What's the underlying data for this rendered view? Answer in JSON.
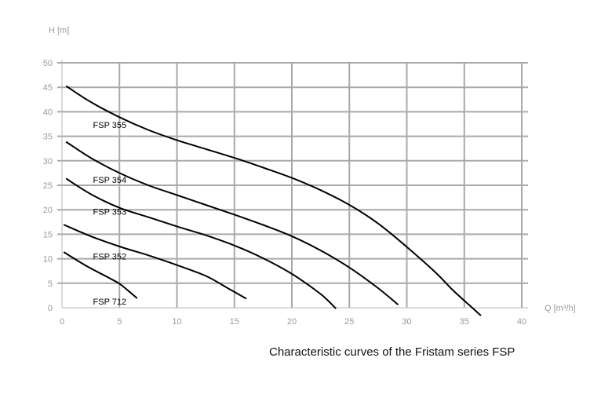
{
  "caption": "Characteristic curves of the Fristam series FSP",
  "chart_data": {
    "type": "line",
    "title": "",
    "xlabel": "Q [m³/h]",
    "ylabel": "H [m]",
    "xlim": [
      0,
      40
    ],
    "ylim": [
      0,
      50
    ],
    "x_ticks": [
      0,
      5,
      10,
      15,
      20,
      25,
      30,
      35,
      40
    ],
    "y_ticks": [
      0,
      5,
      10,
      15,
      20,
      25,
      30,
      35,
      40,
      45,
      50
    ],
    "grid": true,
    "line_color": "#000000",
    "grid_color": "#a9a9a9",
    "series": [
      {
        "name": "FSP 355",
        "label_at": [
          2.7,
          37.3
        ],
        "x": [
          0.4,
          2.5,
          5,
          7.5,
          10,
          12.5,
          15,
          17.5,
          20,
          22.5,
          25,
          27.5,
          30,
          32.5,
          34,
          35.5,
          36.4
        ],
        "y": [
          45.2,
          42,
          38.9,
          36.3,
          34.2,
          32.4,
          30.6,
          28.6,
          26.5,
          24,
          21,
          17.2,
          12.4,
          7.2,
          3.6,
          0.4,
          -1.5
        ]
      },
      {
        "name": "FSP 354",
        "label_at": [
          2.7,
          26.1
        ],
        "x": [
          0.4,
          2.5,
          5,
          7.5,
          10,
          12.5,
          15,
          17.5,
          20,
          22.5,
          25,
          27.5,
          29.2
        ],
        "y": [
          33.8,
          30.6,
          27.5,
          25,
          23,
          21,
          19,
          16.9,
          14.6,
          11.7,
          8.2,
          4,
          0.7
        ]
      },
      {
        "name": "FSP 353",
        "label_at": [
          2.7,
          19.6
        ],
        "x": [
          0.4,
          2.5,
          5,
          7.5,
          10,
          12.5,
          15,
          17.5,
          20,
          22.5,
          23.8
        ],
        "y": [
          26.3,
          23.2,
          20.4,
          18.5,
          16.6,
          14.8,
          12.7,
          10.1,
          6.9,
          2.8,
          -0.1
        ]
      },
      {
        "name": "FSP 352",
        "label_at": [
          2.7,
          10.5
        ],
        "x": [
          0.2,
          2.5,
          5,
          7.5,
          10,
          12.5,
          14.5,
          16
        ],
        "y": [
          16.9,
          14.6,
          12.5,
          10.7,
          8.7,
          6.5,
          3.9,
          1.9
        ]
      },
      {
        "name": "FSP 712",
        "label_at": [
          2.7,
          1.3
        ],
        "x": [
          0.2,
          2,
          4,
          5,
          5.8,
          6.5
        ],
        "y": [
          11.3,
          8.7,
          6.2,
          4.9,
          3.4,
          2
        ]
      }
    ]
  }
}
